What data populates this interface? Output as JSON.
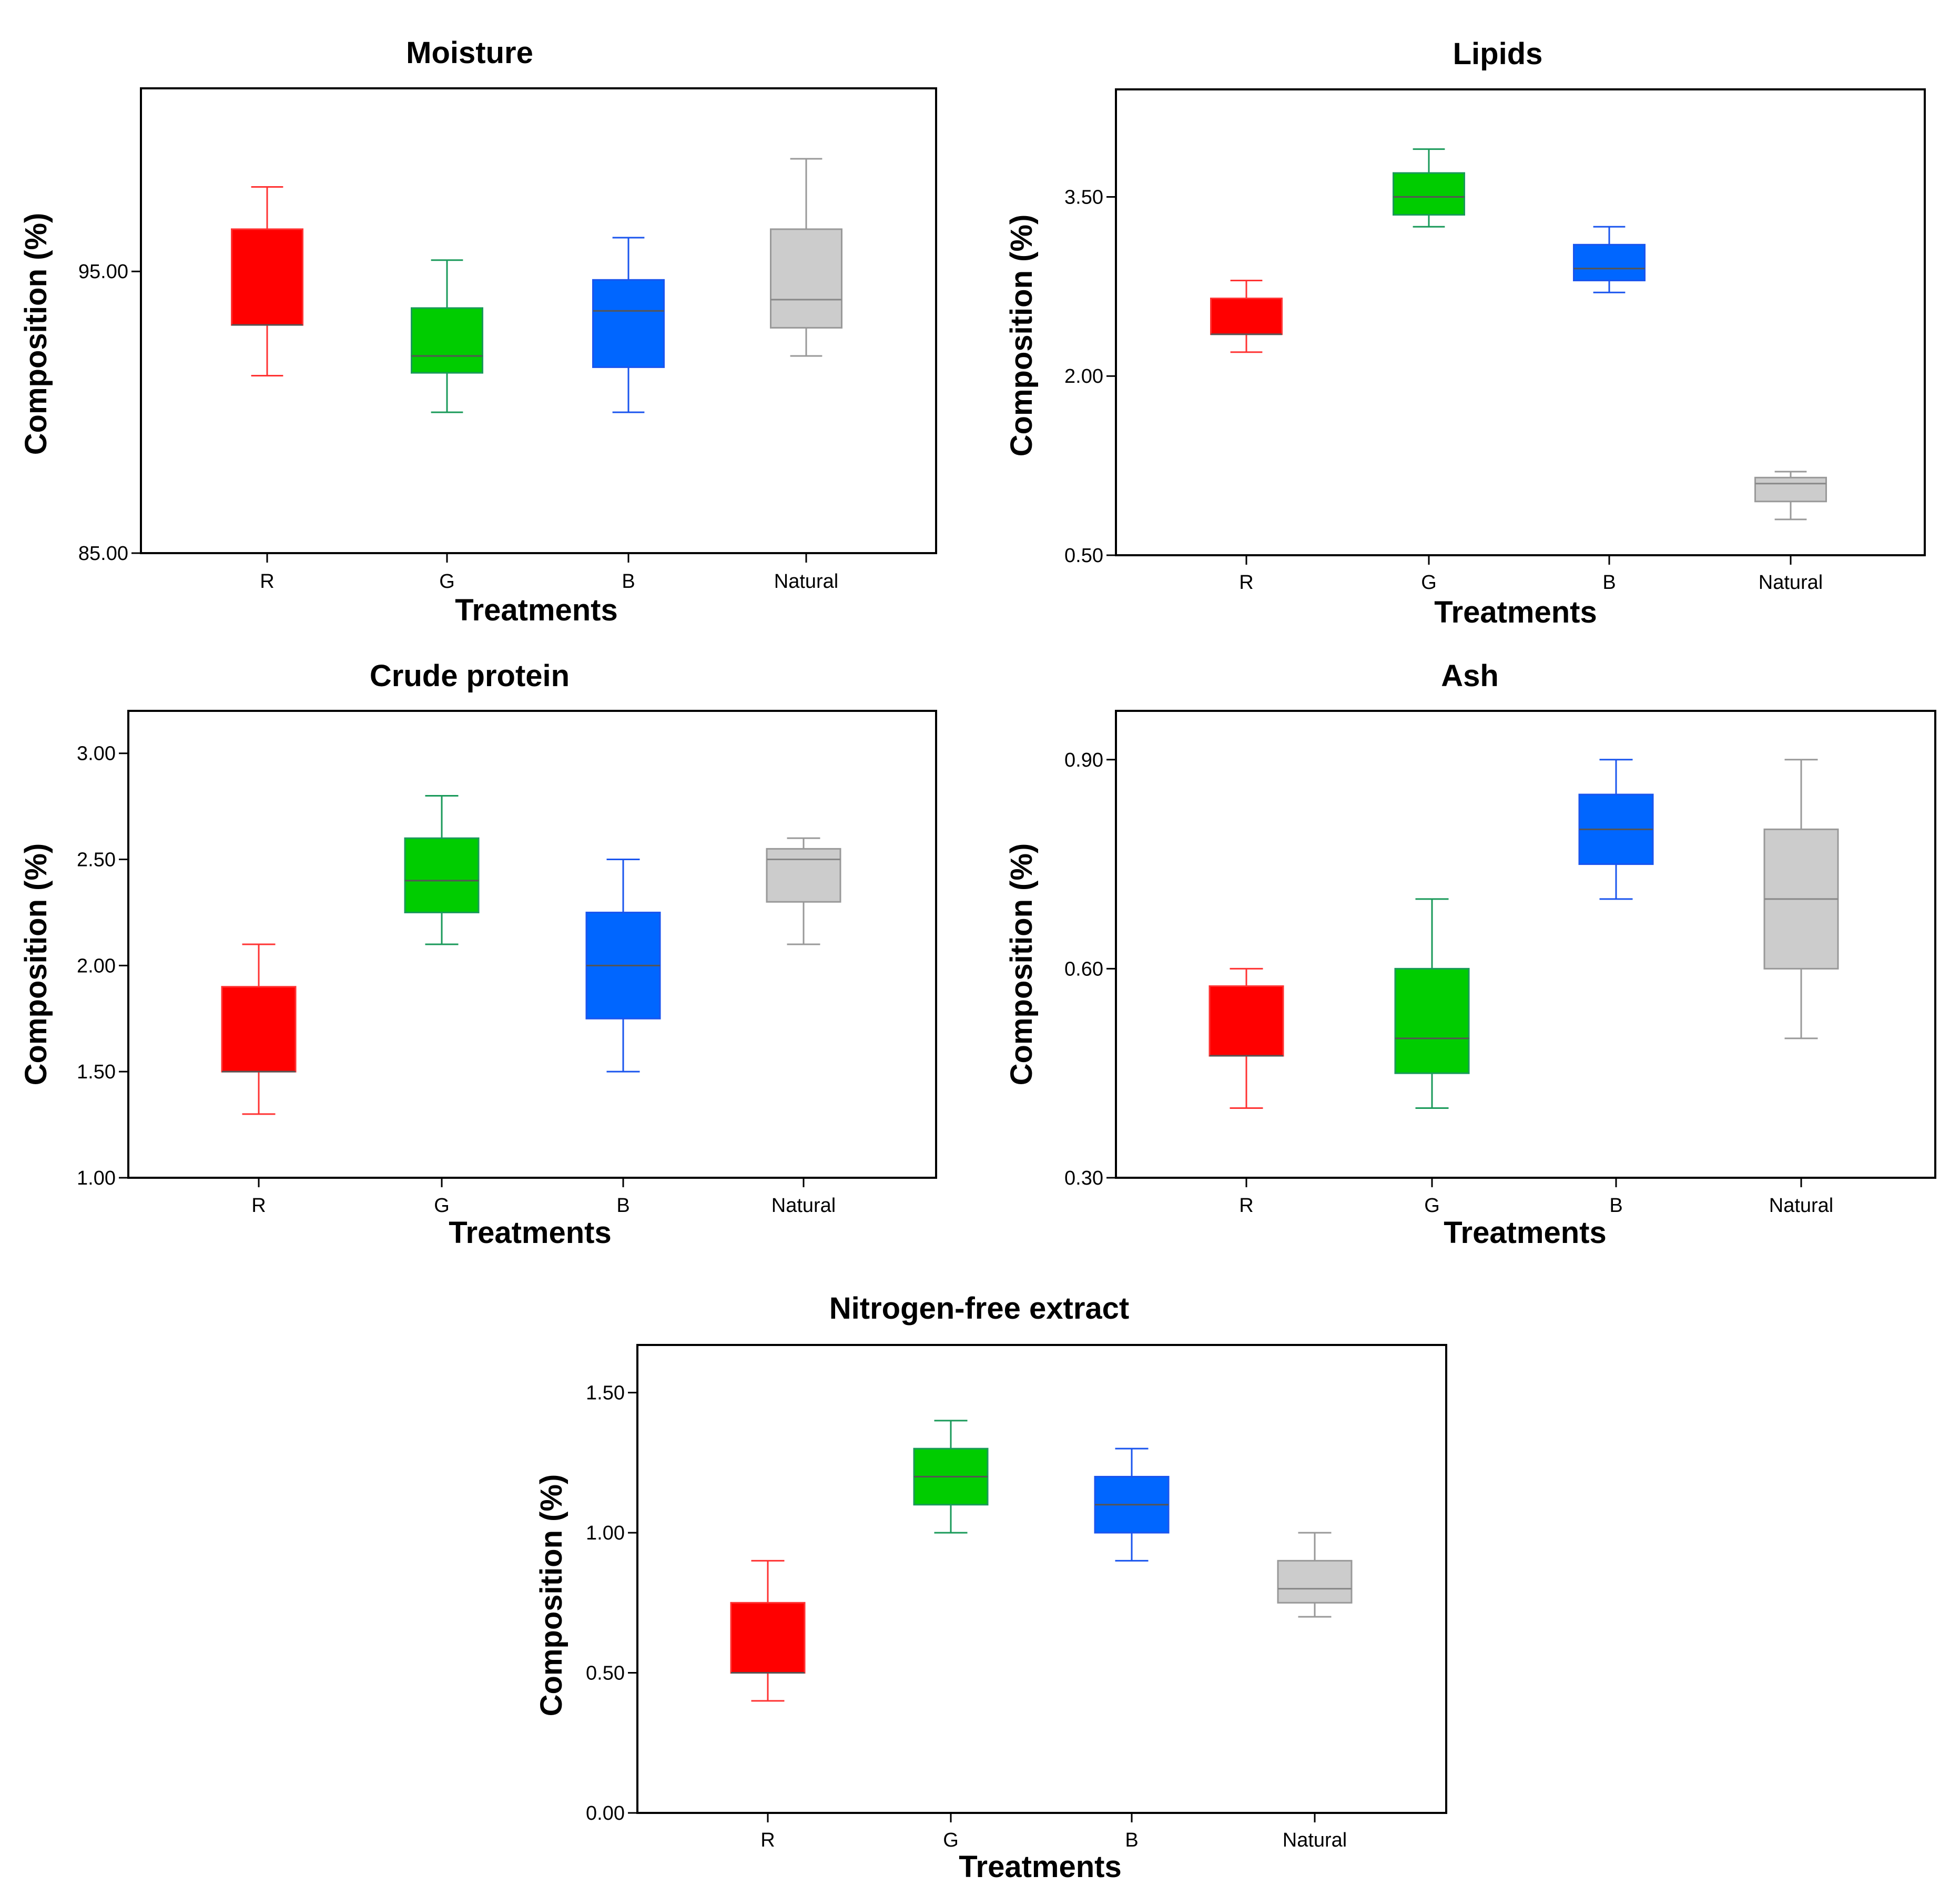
{
  "colors": {
    "R": "#ff0000",
    "G": "#00cc00",
    "B": "#0066ff",
    "Natural": "#cccccc"
  },
  "whisker_colors": {
    "R": "#ff3333",
    "G": "#1a9a5a",
    "B": "#1a55ee",
    "Natural": "#999999"
  },
  "chart_data": [
    {
      "type": "box",
      "title": "Moisture",
      "xlabel": "Treatments",
      "ylabel": "Composition (%)",
      "categories": [
        "R",
        "G",
        "B",
        "Natural"
      ],
      "ylim": [
        85.0,
        101.5
      ],
      "yticks": [
        "85.00",
        "95.00"
      ],
      "ytick_values": [
        85.0,
        95.0
      ],
      "boxes": [
        {
          "category": "R",
          "min": 91.3,
          "q1": 93.1,
          "median": 93.1,
          "q3": 96.5,
          "max": 98.0
        },
        {
          "category": "G",
          "min": 90.0,
          "q1": 91.4,
          "median": 92.0,
          "q3": 93.7,
          "max": 95.4
        },
        {
          "category": "B",
          "min": 90.0,
          "q1": 91.6,
          "median": 93.6,
          "q3": 94.7,
          "max": 96.2
        },
        {
          "category": "Natural",
          "min": 92.0,
          "q1": 93.0,
          "median": 94.0,
          "q3": 96.5,
          "max": 99.0
        }
      ]
    },
    {
      "type": "box",
      "title": "Lipids",
      "xlabel": "Treatments",
      "ylabel": "Composition (%)",
      "categories": [
        "R",
        "G",
        "B",
        "Natural"
      ],
      "ylim": [
        0.5,
        4.4
      ],
      "yticks": [
        "0.50",
        "2.00",
        "3.50"
      ],
      "ytick_values": [
        0.5,
        2.0,
        3.5
      ],
      "boxes": [
        {
          "category": "R",
          "min": 2.2,
          "q1": 2.35,
          "median": 2.35,
          "q3": 2.65,
          "max": 2.8
        },
        {
          "category": "G",
          "min": 3.25,
          "q1": 3.35,
          "median": 3.5,
          "q3": 3.7,
          "max": 3.9
        },
        {
          "category": "B",
          "min": 2.7,
          "q1": 2.8,
          "median": 2.9,
          "q3": 3.1,
          "max": 3.25
        },
        {
          "category": "Natural",
          "min": 0.8,
          "q1": 0.95,
          "median": 1.1,
          "q3": 1.15,
          "max": 1.2
        }
      ]
    },
    {
      "type": "box",
      "title": "Crude protein",
      "xlabel": "Treatments",
      "ylabel": "Composition (%)",
      "categories": [
        "R",
        "G",
        "B",
        "Natural"
      ],
      "ylim": [
        1.0,
        3.2
      ],
      "yticks": [
        "1.00",
        "1.50",
        "2.00",
        "2.50",
        "3.00"
      ],
      "ytick_values": [
        1.0,
        1.5,
        2.0,
        2.5,
        3.0
      ],
      "boxes": [
        {
          "category": "R",
          "min": 1.3,
          "q1": 1.5,
          "median": 1.5,
          "q3": 1.9,
          "max": 2.1
        },
        {
          "category": "G",
          "min": 2.1,
          "q1": 2.25,
          "median": 2.4,
          "q3": 2.6,
          "max": 2.8
        },
        {
          "category": "B",
          "min": 1.5,
          "q1": 1.75,
          "median": 2.0,
          "q3": 2.25,
          "max": 2.5
        },
        {
          "category": "Natural",
          "min": 2.1,
          "q1": 2.3,
          "median": 2.5,
          "q3": 2.55,
          "max": 2.6
        }
      ]
    },
    {
      "type": "box",
      "title": "Ash",
      "xlabel": "Treatments",
      "ylabel": "Composition (%)",
      "categories": [
        "R",
        "G",
        "B",
        "Natural"
      ],
      "ylim": [
        0.3,
        0.97
      ],
      "yticks": [
        "0.30",
        "0.60",
        "0.90"
      ],
      "ytick_values": [
        0.3,
        0.6,
        0.9
      ],
      "boxes": [
        {
          "category": "R",
          "min": 0.4,
          "q1": 0.475,
          "median": 0.475,
          "q3": 0.575,
          "max": 0.6
        },
        {
          "category": "G",
          "min": 0.4,
          "q1": 0.45,
          "median": 0.5,
          "q3": 0.6,
          "max": 0.7
        },
        {
          "category": "B",
          "min": 0.7,
          "q1": 0.75,
          "median": 0.8,
          "q3": 0.85,
          "max": 0.9
        },
        {
          "category": "Natural",
          "min": 0.5,
          "q1": 0.6,
          "median": 0.7,
          "q3": 0.8,
          "max": 0.9
        }
      ]
    },
    {
      "type": "box",
      "title": "Nitrogen-free extract",
      "xlabel": "Treatments",
      "ylabel": "Composition (%)",
      "categories": [
        "R",
        "G",
        "B",
        "Natural"
      ],
      "ylim": [
        0.0,
        1.67
      ],
      "yticks": [
        "0.00",
        "0.50",
        "1.00",
        "1.50"
      ],
      "ytick_values": [
        0.0,
        0.5,
        1.0,
        1.5
      ],
      "boxes": [
        {
          "category": "R",
          "min": 0.4,
          "q1": 0.5,
          "median": 0.5,
          "q3": 0.75,
          "max": 0.9
        },
        {
          "category": "G",
          "min": 1.0,
          "q1": 1.1,
          "median": 1.2,
          "q3": 1.3,
          "max": 1.4
        },
        {
          "category": "B",
          "min": 0.9,
          "q1": 1.0,
          "median": 1.1,
          "q3": 1.2,
          "max": 1.3
        },
        {
          "category": "Natural",
          "min": 0.7,
          "q1": 0.75,
          "median": 0.8,
          "q3": 0.9,
          "max": 1.0
        }
      ]
    }
  ]
}
